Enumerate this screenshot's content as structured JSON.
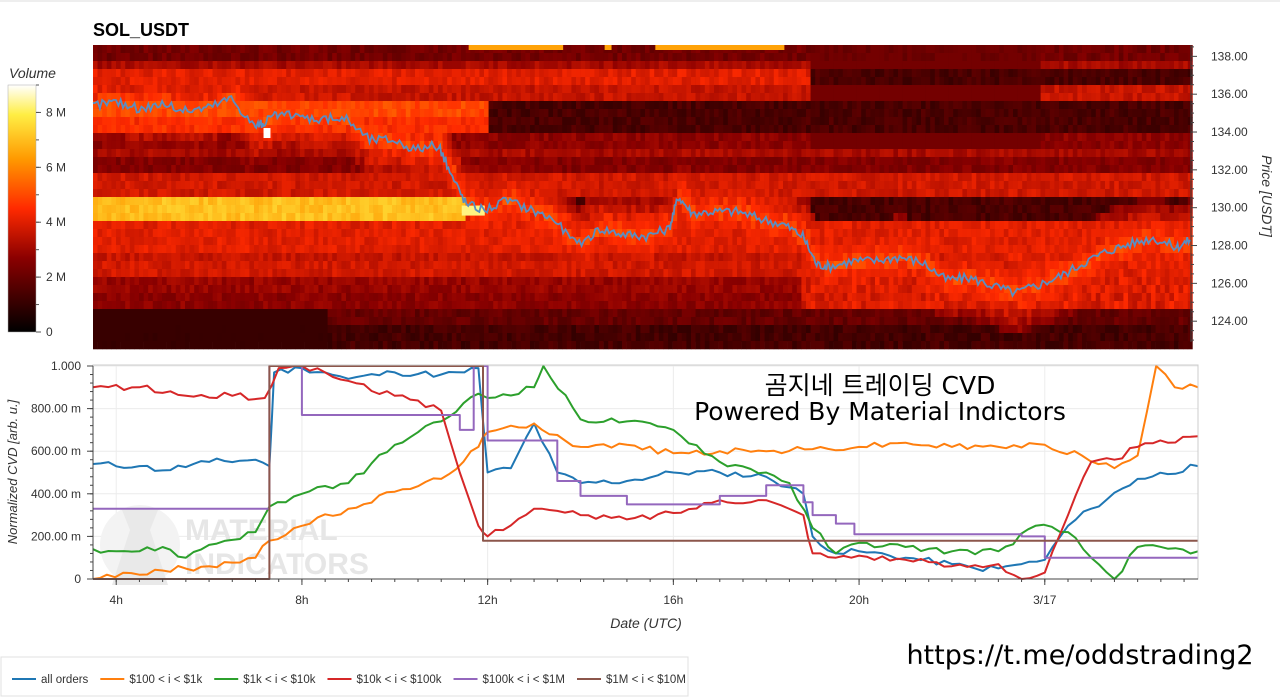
{
  "chart_data": [
    {
      "type": "heatmap",
      "title": "SOL_USDT",
      "ylabel": "Price [USDT]",
      "ylim": [
        122.9,
        138.6
      ],
      "y_ticks": [
        "124.00",
        "126.00",
        "128.00",
        "130.00",
        "132.00",
        "134.00",
        "136.00",
        "138.00"
      ],
      "y_tick_values": [
        124,
        126,
        128,
        130,
        132,
        134,
        136,
        138
      ],
      "colorbar": {
        "label": "Volume",
        "ticks": [
          "0",
          "2 M",
          "4 M",
          "6 M",
          "8 M"
        ],
        "tick_values": [
          0,
          2000000,
          4000000,
          6000000,
          8000000
        ],
        "max": 9000000
      },
      "colors": {
        "low": "#000000",
        "mid": "#cc0000",
        "high": "#ff8800",
        "top": "#ffffff",
        "price_line": "#5b8ec2"
      },
      "price_series": {
        "x_hours": [
          3.5,
          4.0,
          4.5,
          5.0,
          5.5,
          6.0,
          6.5,
          7.0,
          7.2,
          7.5,
          8.0,
          8.5,
          9.0,
          9.5,
          10.0,
          10.5,
          11.0,
          11.3,
          11.6,
          12.0,
          12.5,
          13.0,
          13.5,
          14.0,
          14.5,
          15.0,
          15.5,
          16.0,
          16.2,
          16.5,
          17.0,
          17.5,
          18.0,
          18.5,
          18.9,
          19.2,
          19.5,
          20.0,
          20.5,
          21.0,
          21.5,
          22.0,
          22.5,
          23.0,
          23.5,
          24.0,
          24.5,
          25.0,
          25.5,
          26.0,
          26.5,
          27.0,
          27.3
        ],
        "price": [
          135.4,
          135.6,
          135.2,
          135.5,
          135.1,
          135.3,
          135.8,
          134.3,
          134.5,
          134.9,
          134.8,
          134.7,
          134.7,
          133.6,
          133.6,
          133.1,
          133.3,
          131.6,
          130.2,
          129.9,
          130.4,
          129.9,
          129.4,
          128.0,
          128.9,
          128.6,
          128.5,
          128.9,
          130.6,
          129.7,
          129.8,
          129.8,
          129.4,
          129.1,
          128.5,
          127.0,
          126.9,
          127.2,
          127.2,
          127.4,
          127.1,
          126.2,
          126.3,
          125.9,
          125.5,
          125.9,
          126.4,
          127.1,
          127.7,
          128.1,
          128.4,
          127.9,
          128.3
        ]
      },
      "bands": [
        {
          "price": 138.1,
          "start_h": 3.5,
          "end_h": 27.3,
          "level": 0.25
        },
        {
          "price": 137.6,
          "start_h": 3.5,
          "end_h": 27.3,
          "level": 0.35
        },
        {
          "price": 136.9,
          "start_h": 3.5,
          "end_h": 19.0,
          "level": 0.45
        },
        {
          "price": 136.2,
          "start_h": 3.5,
          "end_h": 27.3,
          "level": 0.4
        },
        {
          "price": 135.4,
          "start_h": 3.5,
          "end_h": 12.0,
          "level": 0.55
        },
        {
          "price": 134.6,
          "start_h": 3.5,
          "end_h": 12.0,
          "level": 0.5
        },
        {
          "price": 133.7,
          "start_h": 3.5,
          "end_h": 27.3,
          "level": 0.3
        },
        {
          "price": 132.9,
          "start_h": 3.5,
          "end_h": 27.3,
          "level": 0.35
        },
        {
          "price": 132.1,
          "start_h": 3.5,
          "end_h": 27.3,
          "level": 0.28
        },
        {
          "price": 131.2,
          "start_h": 3.5,
          "end_h": 27.3,
          "level": 0.42
        },
        {
          "price": 129.9,
          "start_h": 3.5,
          "end_h": 11.5,
          "level": 0.78
        },
        {
          "price": 129.0,
          "start_h": 3.5,
          "end_h": 27.3,
          "level": 0.45
        },
        {
          "price": 128.2,
          "start_h": 3.5,
          "end_h": 27.3,
          "level": 0.45
        },
        {
          "price": 127.4,
          "start_h": 3.5,
          "end_h": 27.3,
          "level": 0.4
        },
        {
          "price": 126.6,
          "start_h": 3.5,
          "end_h": 27.3,
          "level": 0.42
        },
        {
          "price": 125.7,
          "start_h": 3.5,
          "end_h": 27.3,
          "level": 0.32
        },
        {
          "price": 124.9,
          "start_h": 3.5,
          "end_h": 27.3,
          "level": 0.3
        },
        {
          "price": 124.0,
          "start_h": 3.5,
          "end_h": 27.3,
          "level": 0.22
        },
        {
          "price": 123.2,
          "start_h": 3.5,
          "end_h": 27.3,
          "level": 0.15
        }
      ],
      "hotspots": [
        {
          "price": 138.6,
          "start_h": 11.65,
          "end_h": 13.7,
          "level": 0.72
        },
        {
          "price": 138.6,
          "start_h": 14.6,
          "end_h": 14.75,
          "level": 0.72
        },
        {
          "price": 138.6,
          "start_h": 15.7,
          "end_h": 18.5,
          "level": 0.72
        },
        {
          "price": 129.9,
          "start_h": 11.5,
          "end_h": 12.0,
          "level": 0.92
        },
        {
          "price": 134.0,
          "start_h": 7.2,
          "end_h": 7.35,
          "level": 1.0
        }
      ]
    },
    {
      "type": "line",
      "xlabel": "Date (UTC)",
      "ylabel": "Normalized CVD [arb. u.]",
      "xlim": [
        3.5,
        27.3
      ],
      "ylim": [
        0,
        1
      ],
      "x_ticks": [
        "4h",
        "8h",
        "12h",
        "16h",
        "20h",
        "3/17"
      ],
      "x_tick_values": [
        4,
        8,
        12,
        16,
        20,
        24
      ],
      "y_ticks": [
        "0",
        "200.00 m",
        "400.00 m",
        "600.00 m",
        "800.00 m",
        "1.000"
      ],
      "y_tick_values": [
        0,
        0.2,
        0.4,
        0.6,
        0.8,
        1.0
      ],
      "grid": true,
      "legend_position": "bottom-left",
      "series": [
        {
          "name": "all orders",
          "color": "#1f77b4",
          "x": [
            3.5,
            4.5,
            5.0,
            6.0,
            7.0,
            7.3,
            7.4,
            8.0,
            8.5,
            9.0,
            10.0,
            11.0,
            11.5,
            11.8,
            12.0,
            12.5,
            13.0,
            13.5,
            14.0,
            15.0,
            16.0,
            17.0,
            18.0,
            18.8,
            19.0,
            19.5,
            20.0,
            21.0,
            22.0,
            22.5,
            23.0,
            23.5,
            24.0,
            24.5,
            25.0,
            26.0,
            27.3
          ],
          "y": [
            0.54,
            0.53,
            0.51,
            0.55,
            0.56,
            0.53,
            0.97,
            0.99,
            0.97,
            0.94,
            0.97,
            0.96,
            0.97,
            0.99,
            0.5,
            0.52,
            0.73,
            0.5,
            0.45,
            0.46,
            0.5,
            0.5,
            0.48,
            0.4,
            0.2,
            0.12,
            0.13,
            0.1,
            0.07,
            0.05,
            0.05,
            0.07,
            0.09,
            0.25,
            0.33,
            0.47,
            0.53
          ]
        },
        {
          "name": "$100 < i < $1k",
          "color": "#ff7f0e",
          "x": [
            3.5,
            3.8,
            4.5,
            5.0,
            6.0,
            7.0,
            7.3,
            8.0,
            9.0,
            10.0,
            11.0,
            11.8,
            12.0,
            13.0,
            14.0,
            15.0,
            16.0,
            17.0,
            18.0,
            19.0,
            20.0,
            21.0,
            22.0,
            23.0,
            24.0,
            24.8,
            25.5,
            26.0,
            26.4,
            26.8,
            27.3
          ],
          "y": [
            0.0,
            0.02,
            0.02,
            0.04,
            0.06,
            0.1,
            0.18,
            0.25,
            0.33,
            0.41,
            0.47,
            0.62,
            0.69,
            0.73,
            0.62,
            0.63,
            0.59,
            0.6,
            0.6,
            0.61,
            0.62,
            0.64,
            0.62,
            0.62,
            0.63,
            0.58,
            0.52,
            0.58,
            1.0,
            0.9,
            0.9
          ]
        },
        {
          "name": "$1k < i < $10k",
          "color": "#2ca02c",
          "x": [
            3.5,
            4.5,
            5.0,
            5.5,
            6.0,
            7.0,
            7.3,
            8.0,
            9.0,
            10.0,
            11.0,
            11.8,
            12.0,
            13.0,
            13.2,
            14.0,
            15.0,
            16.0,
            17.0,
            18.0,
            18.5,
            19.0,
            19.5,
            20.0,
            21.0,
            22.0,
            23.0,
            23.8,
            24.5,
            25.0,
            25.5,
            26.0,
            27.3
          ],
          "y": [
            0.14,
            0.13,
            0.15,
            0.1,
            0.16,
            0.22,
            0.34,
            0.4,
            0.45,
            0.63,
            0.74,
            0.87,
            0.85,
            0.9,
            1.0,
            0.75,
            0.74,
            0.7,
            0.55,
            0.5,
            0.45,
            0.24,
            0.12,
            0.17,
            0.15,
            0.13,
            0.13,
            0.25,
            0.22,
            0.1,
            0.0,
            0.15,
            0.13
          ]
        },
        {
          "name": "$10k < i < $100k",
          "color": "#d62728",
          "x": [
            3.5,
            4.5,
            5.5,
            6.5,
            7.2,
            7.5,
            8.0,
            8.5,
            9.0,
            10.0,
            11.0,
            11.4,
            11.8,
            12.0,
            13.0,
            14.0,
            15.0,
            16.0,
            17.0,
            18.0,
            18.8,
            19.0,
            19.5,
            20.0,
            21.0,
            22.0,
            23.0,
            23.5,
            24.0,
            24.5,
            25.0,
            25.5,
            26.0,
            27.3
          ],
          "y": [
            0.9,
            0.9,
            0.86,
            0.86,
            0.85,
            0.99,
            1.0,
            0.97,
            0.93,
            0.86,
            0.79,
            0.5,
            0.25,
            0.2,
            0.33,
            0.3,
            0.28,
            0.31,
            0.37,
            0.37,
            0.3,
            0.12,
            0.1,
            0.11,
            0.09,
            0.06,
            0.07,
            0.0,
            0.03,
            0.3,
            0.55,
            0.56,
            0.62,
            0.67
          ]
        },
        {
          "name": "$100k < i < $1M",
          "color": "#9467bd",
          "x": [
            3.5,
            7.2,
            7.3,
            7.8,
            8.0,
            11.0,
            11.4,
            11.7,
            12.0,
            13.0,
            13.5,
            14.0,
            15.0,
            16.0,
            17.0,
            18.0,
            18.8,
            19.0,
            19.5,
            19.9,
            21.0,
            23.0,
            23.5,
            24.0,
            24.5,
            25.0,
            27.3
          ],
          "y": [
            0.33,
            0.33,
            1.0,
            1.0,
            0.77,
            0.77,
            0.7,
            1.0,
            0.65,
            0.65,
            0.46,
            0.39,
            0.35,
            0.35,
            0.39,
            0.44,
            0.36,
            0.3,
            0.26,
            0.21,
            0.21,
            0.21,
            0.2,
            0.1,
            0.1,
            0.1,
            0.1
          ]
        },
        {
          "name": "$1M < i < $10M",
          "color": "#8c564b",
          "x": [
            3.5,
            7.2,
            7.3,
            11.8,
            11.9,
            24.0,
            25.0,
            27.3
          ],
          "y": [
            0.0,
            0.0,
            1.0,
            1.0,
            0.18,
            0.18,
            0.18,
            0.18
          ]
        }
      ]
    }
  ],
  "overlay": {
    "line1": "곰지네 트레이딩 CVD",
    "line2": "Powered By Material Indictors",
    "link": "https://t.me/oddstrading2",
    "watermark_lines": [
      "MATERIAL",
      "INDICATORS"
    ]
  }
}
